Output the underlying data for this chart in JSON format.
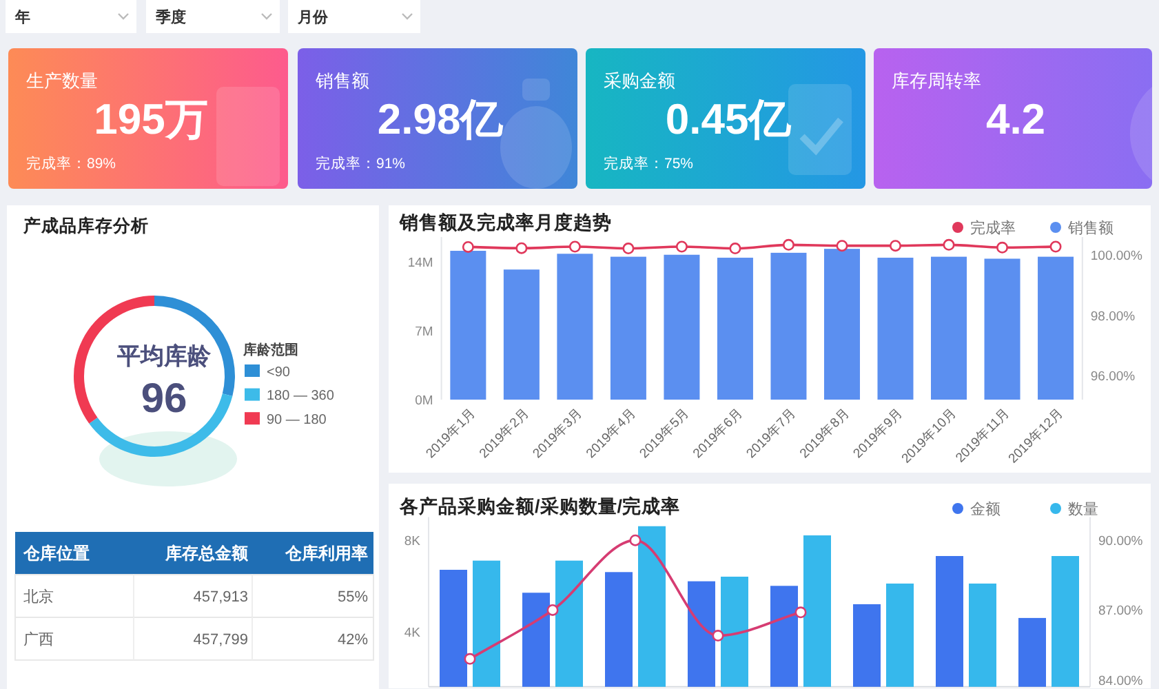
{
  "chart_data": [
    {
      "type": "other",
      "annotations": [
        "年",
        "季度",
        "月份"
      ]
    },
    {
      "type": "other",
      "title": "生产数量",
      "annotations": [
        "195万",
        "完成率：89%"
      ]
    },
    {
      "type": "other",
      "title": "销售额",
      "annotations": [
        "2.98亿",
        "完成率：91%"
      ]
    },
    {
      "type": "other",
      "title": "采购金额",
      "annotations": [
        "0.45亿",
        "完成率：75%"
      ]
    },
    {
      "type": "other",
      "title": "库存周转率",
      "annotations": [
        "4.2"
      ]
    },
    {
      "type": "donut",
      "title": "产成品库存分析",
      "legend_title": "库龄范围",
      "categories": [
        "<90",
        "180 — 360",
        "90 — 180"
      ],
      "values": [
        29,
        36,
        35
      ],
      "colors": [
        "#2e8fd6",
        "#3dbbe9",
        "#f03a52"
      ],
      "legend": "right",
      "annotations": [
        "平均库龄",
        "96"
      ]
    },
    {
      "type": "bar",
      "title": "销售额及完成率月度趋势",
      "categories": [
        "2019年1月",
        "2019年2月",
        "2019年3月",
        "2019年4月",
        "2019年5月",
        "2019年6月",
        "2019年7月",
        "2019年8月",
        "2019年9月",
        "2019年10月",
        "2019年11月",
        "2019年12月"
      ],
      "series": [
        {
          "name": "完成率",
          "type": "line",
          "axis": "y2",
          "color": "#e0385b",
          "values": [
            100.27,
            100.23,
            100.28,
            100.22,
            100.28,
            100.22,
            100.34,
            100.31,
            100.31,
            100.34,
            100.25,
            100.28
          ]
        },
        {
          "name": "销售额",
          "color": "#5b8ff0",
          "values": [
            15.1,
            13.2,
            14.8,
            14.5,
            14.7,
            14.4,
            14.9,
            15.3,
            14.4,
            14.5,
            14.3,
            14.5
          ]
        }
      ],
      "ylim": [
        0,
        16.5
      ],
      "yticks": [
        {
          "value": 0,
          "label": "0M"
        },
        {
          "value": 7,
          "label": "7M"
        },
        {
          "value": 14,
          "label": "14M"
        }
      ],
      "y2lim": [
        95.2,
        100.6
      ],
      "y2ticks": [
        {
          "value": 96,
          "label": "96.00%"
        },
        {
          "value": 98,
          "label": "98.00%"
        },
        {
          "value": 100,
          "label": "100.00%"
        }
      ],
      "marker": "circle",
      "legend": "top right"
    },
    {
      "type": "other",
      "annotations": [
        "仓库位置",
        "库存总金额",
        "仓库利用率",
        "北京",
        "457,913",
        "55%",
        "广西",
        "457,799",
        "42%"
      ]
    },
    {
      "type": "bar",
      "title": "各产品采购金额/采购数量/完成率",
      "categories": [
        null,
        null,
        null,
        null,
        null,
        null,
        null,
        null
      ],
      "series": [
        {
          "name": "金额",
          "color": "#3f75ee",
          "values": [
            6.7,
            5.7,
            6.6,
            6.2,
            6.0,
            5.2,
            7.3,
            4.6
          ]
        },
        {
          "name": "数量",
          "color": "#36b8ec",
          "values": [
            7.1,
            7.1,
            8.6,
            6.4,
            8.2,
            6.1,
            6.1,
            7.3
          ]
        },
        {
          "type": "line",
          "axis": "y2",
          "color": "#d63c72",
          "values": [
            84.9,
            87.0,
            90.0,
            85.9,
            86.9,
            null,
            null,
            null
          ]
        }
      ],
      "ylim": [
        1.6,
        9
      ],
      "yticks": [
        {
          "value": 4,
          "label": "4K"
        },
        {
          "value": 8,
          "label": "8K"
        }
      ],
      "y2lim": [
        83.7,
        91.0
      ],
      "y2ticks": [
        {
          "value": 84,
          "label": "84.00%"
        },
        {
          "value": 87,
          "label": "87.00%"
        },
        {
          "value": 90,
          "label": "90.00%"
        }
      ],
      "marker": "circle",
      "legend": "top right"
    }
  ]
}
